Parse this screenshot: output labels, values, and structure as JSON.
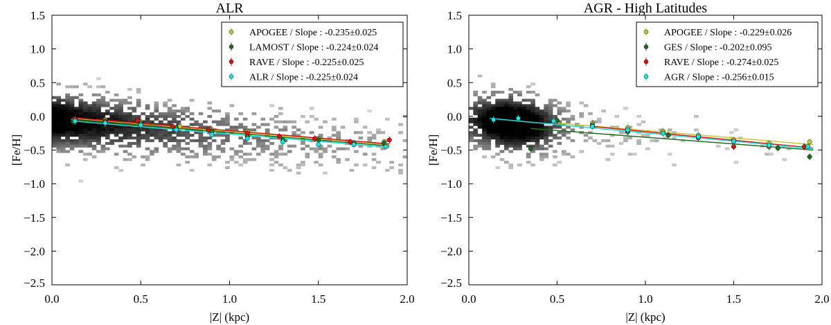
{
  "chart_data": [
    {
      "type": "scatter",
      "title": "ALR",
      "xlabel": "|Z| (kpc)",
      "ylabel": "[Fe/H]",
      "xlim": [
        0,
        2
      ],
      "ylim": [
        -2.5,
        1.5
      ],
      "xticks": [
        "0.0",
        "0.5",
        "1.0",
        "1.5",
        "2.0"
      ],
      "yticks": [
        "1.5",
        "1.0",
        "0.5",
        "0.0",
        "−0.5",
        "−1.0",
        "−1.5",
        "−2.0",
        "−2.5"
      ],
      "legend_position": "top-right",
      "series": [
        {
          "name": "APOGEE / Slope : -0.235±0.025",
          "color": "#c8c832",
          "points": [
            [
              0.12,
              -0.06
            ],
            [
              0.3,
              -0.05
            ],
            [
              0.5,
              -0.08
            ],
            [
              0.72,
              -0.15
            ],
            [
              0.9,
              -0.2
            ],
            [
              1.1,
              -0.22
            ],
            [
              1.3,
              -0.35
            ],
            [
              1.5,
              -0.33
            ],
            [
              1.7,
              -0.4
            ],
            [
              1.87,
              -0.38
            ]
          ],
          "fit": [
            [
              0.12,
              -0.03
            ],
            [
              1.9,
              -0.42
            ]
          ]
        },
        {
          "name": "LAMOST / Slope : -0.224±0.024",
          "color": "#1e6e1e",
          "points": [
            [
              0.12,
              -0.08
            ],
            [
              0.3,
              -0.07
            ],
            [
              0.5,
              -0.1
            ],
            [
              0.7,
              -0.17
            ],
            [
              0.9,
              -0.22
            ],
            [
              1.1,
              -0.3
            ],
            [
              1.3,
              -0.35
            ],
            [
              1.5,
              -0.35
            ],
            [
              1.7,
              -0.4
            ],
            [
              1.87,
              -0.4
            ]
          ],
          "fit": [
            [
              0.12,
              -0.05
            ],
            [
              1.9,
              -0.44
            ]
          ]
        },
        {
          "name": "RAVE / Slope : -0.225±0.025",
          "color": "#e01010",
          "points": [
            [
              0.13,
              -0.04
            ],
            [
              0.3,
              -0.08
            ],
            [
              0.48,
              -0.06
            ],
            [
              0.68,
              -0.15
            ],
            [
              0.88,
              -0.2
            ],
            [
              1.1,
              -0.25
            ],
            [
              1.28,
              -0.3
            ],
            [
              1.48,
              -0.33
            ],
            [
              1.68,
              -0.38
            ],
            [
              1.9,
              -0.35
            ]
          ],
          "fit": [
            [
              0.12,
              -0.02
            ],
            [
              1.9,
              -0.41
            ]
          ]
        },
        {
          "name": "ALR / Slope : -0.225±0.024",
          "color": "#20e0e0",
          "points": [
            [
              0.13,
              -0.07
            ],
            [
              0.3,
              -0.1
            ],
            [
              0.5,
              -0.13
            ],
            [
              0.7,
              -0.2
            ],
            [
              0.9,
              -0.27
            ],
            [
              1.1,
              -0.33
            ],
            [
              1.3,
              -0.38
            ],
            [
              1.5,
              -0.42
            ],
            [
              1.7,
              -0.42
            ],
            [
              1.88,
              -0.45
            ]
          ],
          "fit": [
            [
              0.12,
              -0.07
            ],
            [
              1.9,
              -0.46
            ]
          ]
        }
      ]
    },
    {
      "type": "scatter",
      "title": "AGR - High Latitudes",
      "xlabel": "|Z| (kpc)",
      "ylabel": "[Fe/H]",
      "xlim": [
        0,
        2
      ],
      "ylim": [
        -2.5,
        1.5
      ],
      "xticks": [
        "0.0",
        "0.5",
        "1.0",
        "1.5",
        "2.0"
      ],
      "yticks": [
        "1.5",
        "1.0",
        "0.5",
        "0.0",
        "−0.5",
        "−1.0",
        "−1.5",
        "−2.0",
        "−2.5"
      ],
      "legend_position": "top-right",
      "series": [
        {
          "name": "APOGEE / Slope : -0.229±0.026",
          "color": "#c8c832",
          "points": [
            [
              0.7,
              -0.1
            ],
            [
              0.9,
              -0.17
            ],
            [
              1.1,
              -0.22
            ],
            [
              1.3,
              -0.28
            ],
            [
              1.5,
              -0.35
            ],
            [
              1.7,
              -0.4
            ],
            [
              1.93,
              -0.38
            ]
          ],
          "fit": [
            [
              0.5,
              -0.1
            ],
            [
              1.95,
              -0.42
            ]
          ]
        },
        {
          "name": "GES / Slope : -0.202±0.095",
          "color": "#1e6e1e",
          "points": [
            [
              0.35,
              -0.48
            ],
            [
              0.5,
              -0.06
            ],
            [
              0.7,
              -0.13
            ],
            [
              0.9,
              -0.23
            ],
            [
              1.13,
              -0.28
            ],
            [
              1.3,
              -0.32
            ],
            [
              1.5,
              -0.37
            ],
            [
              1.75,
              -0.47
            ],
            [
              1.93,
              -0.6
            ]
          ],
          "fit": [
            [
              0.35,
              -0.18
            ],
            [
              1.95,
              -0.5
            ]
          ]
        },
        {
          "name": "RAVE / Slope : -0.274±0.025",
          "color": "#e01010",
          "points": [
            [
              0.7,
              -0.15
            ],
            [
              0.9,
              -0.2
            ],
            [
              1.1,
              -0.25
            ],
            [
              1.3,
              -0.3
            ],
            [
              1.5,
              -0.45
            ],
            [
              1.7,
              -0.45
            ],
            [
              1.9,
              -0.45
            ]
          ],
          "fit": [
            [
              0.7,
              -0.15
            ],
            [
              1.95,
              -0.47
            ]
          ]
        },
        {
          "name": "AGR / Slope : -0.256±0.015",
          "color": "#20e0e0",
          "points": [
            [
              0.14,
              -0.05
            ],
            [
              0.28,
              -0.03
            ],
            [
              0.48,
              -0.07
            ],
            [
              0.7,
              -0.15
            ],
            [
              0.9,
              -0.2
            ],
            [
              1.1,
              -0.25
            ],
            [
              1.3,
              -0.3
            ],
            [
              1.5,
              -0.37
            ],
            [
              1.7,
              -0.43
            ],
            [
              1.92,
              -0.45
            ]
          ],
          "fit": [
            [
              0.12,
              -0.03
            ],
            [
              1.95,
              -0.48
            ]
          ]
        }
      ]
    }
  ]
}
